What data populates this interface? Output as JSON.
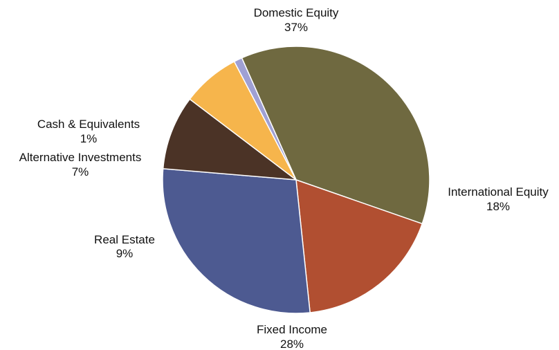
{
  "chart_data": {
    "type": "pie",
    "title": "",
    "start_angle_deg": 246,
    "direction": "clockwise",
    "slices": [
      {
        "label": "Domestic Equity",
        "pct_label": "37%",
        "value": 37,
        "color": "#6f6940"
      },
      {
        "label": "International Equity",
        "pct_label": "18%",
        "value": 18,
        "color": "#b14f31"
      },
      {
        "label": "Fixed Income",
        "pct_label": "28%",
        "value": 28,
        "color": "#4d5a91"
      },
      {
        "label": "Real Estate",
        "pct_label": "9%",
        "value": 9,
        "color": "#4b3326"
      },
      {
        "label": "Alternative Investments",
        "pct_label": "7%",
        "value": 7,
        "color": "#f6b54c"
      },
      {
        "label": "Cash & Equivalents",
        "pct_label": "1%",
        "value": 1,
        "color": "#9fa0d4"
      }
    ]
  }
}
